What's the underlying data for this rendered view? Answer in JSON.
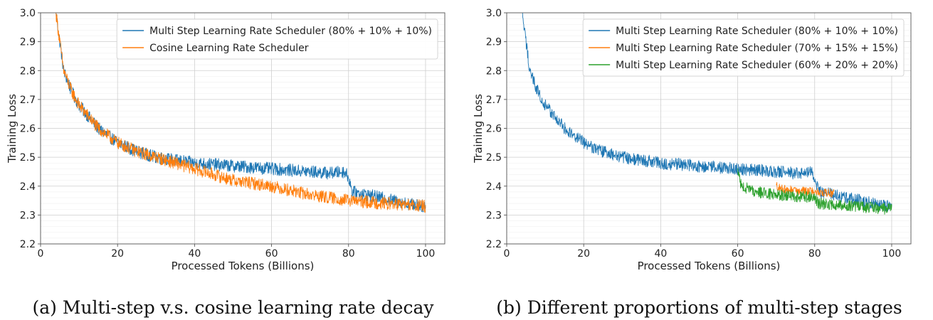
{
  "chart_data": [
    {
      "type": "line",
      "caption": "(a)  Multi-step v.s. cosine learning rate decay",
      "xlabel": "Processed Tokens (Billions)",
      "ylabel": "Training Loss",
      "xlim": [
        0,
        105
      ],
      "ylim": [
        2.2,
        3.0
      ],
      "x_ticks": [
        "0",
        "20",
        "40",
        "60",
        "80",
        "100"
      ],
      "y_ticks": [
        "2.2",
        "2.3",
        "2.4",
        "2.5",
        "2.6",
        "2.7",
        "2.8",
        "2.9",
        "3.0"
      ],
      "grid": true,
      "legend_position": "top-right",
      "series": [
        {
          "name": "Multi Step Learning Rate Scheduler (80% + 10% + 10%)",
          "color": "#1f77b4",
          "x": [
            4,
            5,
            6,
            8,
            10,
            15,
            20,
            25,
            30,
            35,
            40,
            45,
            50,
            55,
            60,
            65,
            70,
            75,
            79,
            80,
            81,
            85,
            90,
            95,
            100
          ],
          "y": [
            3.0,
            2.9,
            2.8,
            2.73,
            2.68,
            2.6,
            2.55,
            2.52,
            2.5,
            2.49,
            2.48,
            2.475,
            2.47,
            2.465,
            2.46,
            2.455,
            2.45,
            2.445,
            2.45,
            2.43,
            2.38,
            2.37,
            2.355,
            2.34,
            2.33
          ],
          "noise": 0.022
        },
        {
          "name": "Cosine Learning Rate Scheduler",
          "color": "#ff7f0e",
          "x": [
            4,
            5,
            6,
            8,
            10,
            15,
            20,
            25,
            30,
            35,
            40,
            45,
            50,
            55,
            60,
            65,
            70,
            75,
            80,
            85,
            90,
            95,
            100
          ],
          "y": [
            3.0,
            2.9,
            2.8,
            2.73,
            2.68,
            2.6,
            2.55,
            2.52,
            2.5,
            2.48,
            2.46,
            2.44,
            2.42,
            2.41,
            2.4,
            2.385,
            2.37,
            2.36,
            2.35,
            2.345,
            2.34,
            2.335,
            2.33
          ],
          "noise": 0.022
        }
      ]
    },
    {
      "type": "line",
      "caption": "(b)  Different proportions of multi-step stages",
      "xlabel": "Processed Tokens (Billions)",
      "ylabel": "Training Loss",
      "xlim": [
        0,
        105
      ],
      "ylim": [
        2.2,
        3.0
      ],
      "x_ticks": [
        "0",
        "20",
        "40",
        "60",
        "80",
        "100"
      ],
      "y_ticks": [
        "2.2",
        "2.3",
        "2.4",
        "2.5",
        "2.6",
        "2.7",
        "2.8",
        "2.9",
        "3.0"
      ],
      "grid": true,
      "legend_position": "top-right",
      "series": [
        {
          "name": "Multi Step Learning Rate Scheduler (80% + 10% + 10%)",
          "color": "#1f77b4",
          "x": [
            4,
            5,
            6,
            8,
            10,
            15,
            20,
            25,
            30,
            35,
            40,
            45,
            50,
            55,
            60,
            65,
            70,
            75,
            79,
            80,
            81,
            85,
            90,
            95,
            100
          ],
          "y": [
            3.0,
            2.9,
            2.8,
            2.73,
            2.68,
            2.6,
            2.55,
            2.52,
            2.5,
            2.49,
            2.48,
            2.475,
            2.47,
            2.465,
            2.46,
            2.455,
            2.45,
            2.445,
            2.45,
            2.43,
            2.38,
            2.37,
            2.355,
            2.34,
            2.33
          ],
          "noise": 0.022
        },
        {
          "name": "Multi Step Learning Rate Scheduler (70% + 15% + 15%)",
          "color": "#ff7f0e",
          "x": [
            70,
            72,
            75,
            80,
            85
          ],
          "y": [
            2.4,
            2.39,
            2.385,
            2.38,
            2.375
          ],
          "noise": 0.015
        },
        {
          "name": "Multi Step Learning Rate Scheduler (60% + 20% + 20%)",
          "color": "#2ca02c",
          "x": [
            60,
            61,
            65,
            70,
            75,
            80,
            81,
            85,
            90,
            95,
            100
          ],
          "y": [
            2.45,
            2.4,
            2.38,
            2.37,
            2.365,
            2.36,
            2.34,
            2.335,
            2.33,
            2.325,
            2.32
          ],
          "noise": 0.02
        }
      ]
    }
  ]
}
